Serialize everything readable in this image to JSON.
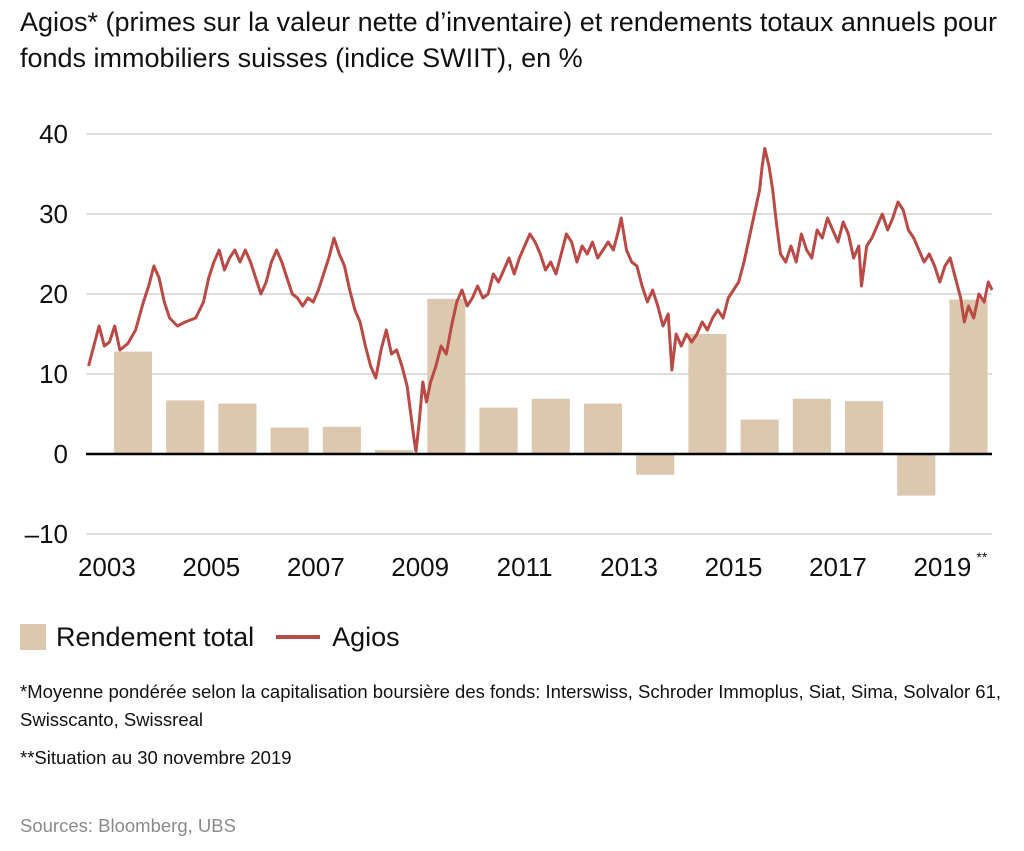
{
  "chart_data": {
    "type": "bar+line",
    "title": "Agios* (primes sur la valeur nette d’inventaire) et rendements totaux annuels pour fonds immobiliers suisses (indice SWIIT), en %",
    "ylim": [
      -10,
      40
    ],
    "yticks": [
      {
        "value": 40,
        "label": "40"
      },
      {
        "value": 30,
        "label": "30"
      },
      {
        "value": 20,
        "label": "20"
      },
      {
        "value": 10,
        "label": "10"
      },
      {
        "value": 0,
        "label": "0"
      },
      {
        "value": -10,
        "label": "–10"
      }
    ],
    "xlim": [
      2002.6,
      2019.95
    ],
    "xticks": [
      {
        "value": 2003,
        "label": "2003"
      },
      {
        "value": 2005,
        "label": "2005"
      },
      {
        "value": 2007,
        "label": "2007"
      },
      {
        "value": 2009,
        "label": "2009"
      },
      {
        "value": 2011,
        "label": "2011"
      },
      {
        "value": 2013,
        "label": "2013"
      },
      {
        "value": 2015,
        "label": "2015"
      },
      {
        "value": 2017,
        "label": "2017"
      },
      {
        "value": 2019,
        "label": "2019",
        "suffix": "**"
      }
    ],
    "bar_series": {
      "name": "Rendement total",
      "color": "#dbc8ae",
      "years": [
        2003,
        2004,
        2005,
        2006,
        2007,
        2008,
        2009,
        2010,
        2011,
        2012,
        2013,
        2014,
        2015,
        2016,
        2017,
        2018,
        2019
      ],
      "values": [
        12.8,
        6.7,
        6.3,
        3.3,
        3.4,
        0.5,
        19.4,
        5.8,
        6.9,
        6.3,
        -2.6,
        15.0,
        4.3,
        6.9,
        6.6,
        -5.2,
        19.3
      ]
    },
    "line_series": {
      "name": "Agios",
      "color": "#b94a45",
      "points": [
        [
          2002.65,
          11
        ],
        [
          2002.75,
          13.5
        ],
        [
          2002.85,
          16
        ],
        [
          2002.95,
          13.5
        ],
        [
          2003.05,
          14
        ],
        [
          2003.15,
          16
        ],
        [
          2003.25,
          13
        ],
        [
          2003.4,
          13.8
        ],
        [
          2003.55,
          15.5
        ],
        [
          2003.7,
          19
        ],
        [
          2003.8,
          21
        ],
        [
          2003.9,
          23.5
        ],
        [
          2004.0,
          22
        ],
        [
          2004.1,
          19
        ],
        [
          2004.2,
          17
        ],
        [
          2004.35,
          16
        ],
        [
          2004.5,
          16.5
        ],
        [
          2004.7,
          17
        ],
        [
          2004.85,
          19
        ],
        [
          2004.95,
          22
        ],
        [
          2005.05,
          24
        ],
        [
          2005.15,
          25.5
        ],
        [
          2005.25,
          23
        ],
        [
          2005.35,
          24.5
        ],
        [
          2005.45,
          25.5
        ],
        [
          2005.55,
          24
        ],
        [
          2005.65,
          25.5
        ],
        [
          2005.75,
          24
        ],
        [
          2005.85,
          22
        ],
        [
          2005.95,
          20
        ],
        [
          2006.05,
          21.5
        ],
        [
          2006.15,
          24
        ],
        [
          2006.25,
          25.5
        ],
        [
          2006.35,
          24
        ],
        [
          2006.45,
          22
        ],
        [
          2006.55,
          20
        ],
        [
          2006.65,
          19.5
        ],
        [
          2006.75,
          18.5
        ],
        [
          2006.85,
          19.5
        ],
        [
          2006.95,
          19
        ],
        [
          2007.05,
          20.5
        ],
        [
          2007.15,
          22.5
        ],
        [
          2007.25,
          24.5
        ],
        [
          2007.35,
          27
        ],
        [
          2007.45,
          25
        ],
        [
          2007.55,
          23.5
        ],
        [
          2007.65,
          20.5
        ],
        [
          2007.75,
          18
        ],
        [
          2007.85,
          16.5
        ],
        [
          2007.95,
          13.5
        ],
        [
          2008.05,
          11
        ],
        [
          2008.15,
          9.5
        ],
        [
          2008.25,
          13
        ],
        [
          2008.35,
          15.5
        ],
        [
          2008.45,
          12.5
        ],
        [
          2008.55,
          13
        ],
        [
          2008.65,
          11
        ],
        [
          2008.75,
          8.5
        ],
        [
          2008.82,
          5
        ],
        [
          2008.88,
          2
        ],
        [
          2008.92,
          0.3
        ],
        [
          2008.98,
          4
        ],
        [
          2009.05,
          9
        ],
        [
          2009.12,
          6.5
        ],
        [
          2009.2,
          9
        ],
        [
          2009.3,
          11
        ],
        [
          2009.4,
          13.5
        ],
        [
          2009.5,
          12.5
        ],
        [
          2009.6,
          16
        ],
        [
          2009.7,
          19
        ],
        [
          2009.8,
          20.5
        ],
        [
          2009.9,
          18.5
        ],
        [
          2010.0,
          19.5
        ],
        [
          2010.1,
          21
        ],
        [
          2010.2,
          19.5
        ],
        [
          2010.3,
          20
        ],
        [
          2010.4,
          22.5
        ],
        [
          2010.5,
          21.5
        ],
        [
          2010.6,
          23
        ],
        [
          2010.7,
          24.5
        ],
        [
          2010.8,
          22.5
        ],
        [
          2010.9,
          24.5
        ],
        [
          2011.0,
          26
        ],
        [
          2011.1,
          27.5
        ],
        [
          2011.2,
          26.5
        ],
        [
          2011.3,
          25
        ],
        [
          2011.4,
          23
        ],
        [
          2011.5,
          24
        ],
        [
          2011.6,
          22.5
        ],
        [
          2011.7,
          25
        ],
        [
          2011.8,
          27.5
        ],
        [
          2011.9,
          26.5
        ],
        [
          2012.0,
          24
        ],
        [
          2012.1,
          26
        ],
        [
          2012.2,
          25
        ],
        [
          2012.3,
          26.5
        ],
        [
          2012.4,
          24.5
        ],
        [
          2012.5,
          25.5
        ],
        [
          2012.6,
          26.5
        ],
        [
          2012.7,
          25.5
        ],
        [
          2012.8,
          28
        ],
        [
          2012.85,
          29.5
        ],
        [
          2012.95,
          25.5
        ],
        [
          2013.05,
          24
        ],
        [
          2013.15,
          23.5
        ],
        [
          2013.25,
          21
        ],
        [
          2013.35,
          19
        ],
        [
          2013.45,
          20.5
        ],
        [
          2013.55,
          18.5
        ],
        [
          2013.65,
          16
        ],
        [
          2013.75,
          17.5
        ],
        [
          2013.82,
          10.5
        ],
        [
          2013.9,
          15
        ],
        [
          2014.0,
          13.5
        ],
        [
          2014.1,
          15
        ],
        [
          2014.2,
          14
        ],
        [
          2014.3,
          15
        ],
        [
          2014.4,
          16.5
        ],
        [
          2014.5,
          15.5
        ],
        [
          2014.6,
          17
        ],
        [
          2014.7,
          18
        ],
        [
          2014.8,
          17
        ],
        [
          2014.9,
          19.5
        ],
        [
          2015.0,
          20.5
        ],
        [
          2015.1,
          21.5
        ],
        [
          2015.2,
          24
        ],
        [
          2015.3,
          27
        ],
        [
          2015.4,
          30
        ],
        [
          2015.5,
          33
        ],
        [
          2015.55,
          36
        ],
        [
          2015.6,
          38.2
        ],
        [
          2015.68,
          36
        ],
        [
          2015.75,
          33
        ],
        [
          2015.82,
          29
        ],
        [
          2015.9,
          25
        ],
        [
          2016.0,
          24
        ],
        [
          2016.1,
          26
        ],
        [
          2016.2,
          24
        ],
        [
          2016.3,
          27.5
        ],
        [
          2016.4,
          25.5
        ],
        [
          2016.5,
          24.5
        ],
        [
          2016.6,
          28
        ],
        [
          2016.7,
          27
        ],
        [
          2016.8,
          29.5
        ],
        [
          2016.9,
          28
        ],
        [
          2017.0,
          26.5
        ],
        [
          2017.1,
          29
        ],
        [
          2017.2,
          27.5
        ],
        [
          2017.3,
          24.5
        ],
        [
          2017.4,
          26
        ],
        [
          2017.45,
          21
        ],
        [
          2017.55,
          26
        ],
        [
          2017.65,
          27
        ],
        [
          2017.75,
          28.5
        ],
        [
          2017.85,
          30
        ],
        [
          2017.95,
          28
        ],
        [
          2018.05,
          29.5
        ],
        [
          2018.15,
          31.5
        ],
        [
          2018.25,
          30.5
        ],
        [
          2018.35,
          28
        ],
        [
          2018.45,
          27
        ],
        [
          2018.55,
          25.5
        ],
        [
          2018.65,
          24
        ],
        [
          2018.75,
          25
        ],
        [
          2018.85,
          23.5
        ],
        [
          2018.95,
          21.5
        ],
        [
          2019.05,
          23.5
        ],
        [
          2019.15,
          24.5
        ],
        [
          2019.25,
          22
        ],
        [
          2019.35,
          19.5
        ],
        [
          2019.42,
          16.5
        ],
        [
          2019.5,
          18.5
        ],
        [
          2019.6,
          17
        ],
        [
          2019.7,
          20
        ],
        [
          2019.8,
          19
        ],
        [
          2019.88,
          21.5
        ],
        [
          2019.95,
          20.5
        ]
      ]
    },
    "legend": {
      "placement": "bottom-left",
      "entries": [
        {
          "label": "Rendement total",
          "kind": "bar"
        },
        {
          "label": "Agios",
          "kind": "line"
        }
      ]
    },
    "grid": true
  },
  "notes": {
    "note1": "*Moyenne pondérée selon la capitalisation boursière des fonds: Interswiss, Schroder Immoplus, Siat, Sima, Solvalor 61, Swisscanto, Swissreal",
    "note2": "**Situation au 30 novembre 2019"
  },
  "source": "Sources: Bloomberg, UBS"
}
